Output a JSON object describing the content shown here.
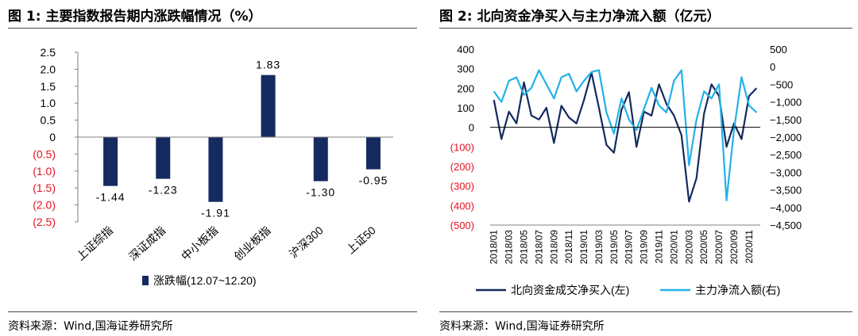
{
  "left": {
    "title": "图 1:  主要指数报告期内涨跌幅情况（%）",
    "source": "资料来源：Wind,国海证券研究所",
    "chart_data": {
      "type": "bar",
      "categories": [
        "上证综指",
        "深证成指",
        "中小板指",
        "创业板指",
        "沪深300",
        "上证50"
      ],
      "series": [
        {
          "name": "涨跌幅(12.07~12.20)",
          "values": [
            -1.44,
            -1.23,
            -1.91,
            1.83,
            -1.3,
            -0.95
          ]
        }
      ],
      "value_labels": [
        "-1.44",
        "-1.23",
        "-1.91",
        "1.83",
        "-1.30",
        "-0.95"
      ],
      "ylim": [
        -2.5,
        2.5
      ],
      "yticks": [
        2.5,
        2.0,
        1.5,
        1.0,
        0.5,
        0,
        -0.5,
        -1.0,
        -1.5,
        -2.0,
        -2.5
      ],
      "ytick_labels": [
        "2.5",
        "2.0",
        "1.5",
        "1.0",
        "0.5",
        "0",
        "(0.5)",
        "(1.0)",
        "(1.5)",
        "(2.0)",
        "(2.5)"
      ],
      "legend_position": "bottom",
      "colors": {
        "bar": "#152a5e",
        "negative_tick": "#e8101e",
        "axis": "#7f7f7f"
      }
    }
  },
  "right": {
    "title": "图 2:  北向资金净买入与主力净流入额（亿元）",
    "source": "资料来源：Wind,国海证券研究所",
    "chart_data": {
      "type": "line",
      "x_range": [
        "2018/01",
        "2020/12"
      ],
      "x_ticks": [
        "2018/01",
        "2018/03",
        "2018/05",
        "2018/07",
        "2018/09",
        "2018/11",
        "2019/01",
        "2019/03",
        "2019/05",
        "2019/07",
        "2019/09",
        "2019/11",
        "2020/01",
        "2020/03",
        "2020/05",
        "2020/07",
        "2020/09",
        "2020/11"
      ],
      "left_axis": {
        "ylim": [
          -500,
          400
        ],
        "ticks": [
          400,
          300,
          200,
          100,
          0,
          -100,
          -200,
          -300,
          -400,
          -500
        ],
        "tick_labels": [
          "400",
          "300",
          "200",
          "100",
          "0",
          "(100)",
          "(200)",
          "(300)",
          "(400)",
          "(500)"
        ]
      },
      "right_axis": {
        "ylim": [
          -4500,
          500
        ],
        "ticks": [
          500,
          0,
          -500,
          -1000,
          -1500,
          -2000,
          -2500,
          -3000,
          -3500,
          -4000,
          -4500
        ],
        "tick_labels": [
          "500",
          "0",
          "−500",
          "−1,000",
          "−1,500",
          "−2,000",
          "−2,500",
          "−3,000",
          "−3,500",
          "−4,000",
          "−4,500"
        ]
      },
      "series": [
        {
          "name": "北向资金成交净买入(左)",
          "axis": "left",
          "color": "#152a5e",
          "x": [
            "2018/01",
            "2018/02",
            "2018/03",
            "2018/04",
            "2018/05",
            "2018/06",
            "2018/07",
            "2018/08",
            "2018/09",
            "2018/10",
            "2018/11",
            "2018/12",
            "2019/01",
            "2019/02",
            "2019/03",
            "2019/04",
            "2019/05",
            "2019/06",
            "2019/07",
            "2019/08",
            "2019/09",
            "2019/10",
            "2019/11",
            "2019/12",
            "2020/01",
            "2020/02",
            "2020/03",
            "2020/04",
            "2020/05",
            "2020/06",
            "2020/07",
            "2020/08",
            "2020/09",
            "2020/10",
            "2020/11",
            "2020/12"
          ],
          "values": [
            140,
            -60,
            80,
            20,
            230,
            60,
            40,
            100,
            -80,
            110,
            50,
            20,
            140,
            280,
            100,
            -90,
            -130,
            90,
            180,
            -100,
            80,
            60,
            220,
            120,
            60,
            -40,
            -380,
            -260,
            70,
            220,
            160,
            -100,
            20,
            -60,
            160,
            200
          ]
        },
        {
          "name": "主力净流入额(右)",
          "axis": "right",
          "color": "#23b1e8",
          "x": [
            "2018/01",
            "2018/02",
            "2018/03",
            "2018/04",
            "2018/05",
            "2018/06",
            "2018/07",
            "2018/08",
            "2018/09",
            "2018/10",
            "2018/11",
            "2018/12",
            "2019/01",
            "2019/02",
            "2019/03",
            "2019/04",
            "2019/05",
            "2019/06",
            "2019/07",
            "2019/08",
            "2019/09",
            "2019/10",
            "2019/11",
            "2019/12",
            "2020/01",
            "2020/02",
            "2020/03",
            "2020/04",
            "2020/05",
            "2020/06",
            "2020/07",
            "2020/08",
            "2020/09",
            "2020/10",
            "2020/11",
            "2020/12"
          ],
          "values": [
            -700,
            -1000,
            -400,
            -300,
            -800,
            -600,
            -100,
            -500,
            -900,
            -300,
            -200,
            -700,
            -400,
            -150,
            -100,
            -1300,
            -1900,
            -900,
            -1500,
            -1800,
            -1200,
            -600,
            -1100,
            -1300,
            -400,
            -100,
            -2800,
            -1500,
            -700,
            -900,
            -500,
            -3800,
            -1800,
            -300,
            -1100,
            -1300
          ]
        }
      ],
      "legend_position": "bottom"
    }
  }
}
